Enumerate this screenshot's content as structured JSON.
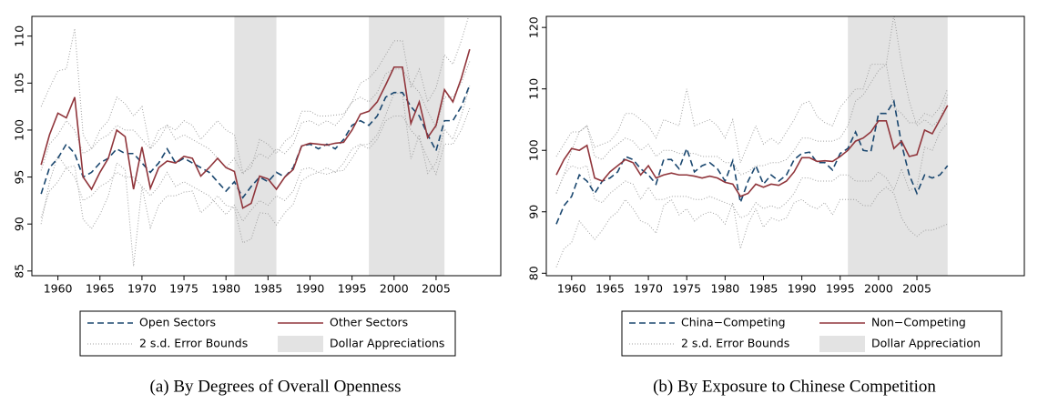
{
  "chart_data": [
    {
      "type": "line",
      "caption": "(a) By Degrees of Overall Openness",
      "x": [
        1958,
        1959,
        1960,
        1961,
        1962,
        1963,
        1964,
        1965,
        1966,
        1967,
        1968,
        1969,
        1970,
        1971,
        1972,
        1973,
        1974,
        1975,
        1976,
        1977,
        1978,
        1979,
        1980,
        1981,
        1982,
        1983,
        1984,
        1985,
        1986,
        1987,
        1988,
        1989,
        1990,
        1991,
        1992,
        1993,
        1994,
        1995,
        1996,
        1997,
        1998,
        1999,
        2000,
        2001,
        2002,
        2003,
        2004,
        2005,
        2006,
        2007,
        2008,
        2009
      ],
      "xlim": [
        1956.9,
        2012.7
      ],
      "xticks": [
        1960,
        1965,
        1970,
        1975,
        1980,
        1985,
        1990,
        1995,
        2000,
        2005
      ],
      "ylim": [
        84.5,
        112.1
      ],
      "yticks": [
        85,
        90,
        95,
        100,
        105,
        110
      ],
      "series": [
        {
          "name": "Open Sectors",
          "color": "#1a476f",
          "dash": "dashed",
          "values": [
            93.2,
            96,
            97,
            98.5,
            97.5,
            95,
            95.5,
            96.5,
            97,
            98,
            97.5,
            97.5,
            96.5,
            95.5,
            96.5,
            98,
            96.5,
            97,
            96.5,
            96,
            95.5,
            94.5,
            93.5,
            94.5,
            92.8,
            94,
            95,
            94.5,
            95.5,
            95,
            96,
            98.3,
            98.5,
            98,
            98.5,
            98,
            99,
            100.5,
            101,
            100.5,
            101.5,
            103.5,
            104,
            104,
            102.5,
            101.5,
            99.5,
            97.8,
            101,
            101,
            102.5,
            104.8
          ]
        },
        {
          "name": "Other Sectors",
          "color": "#90353b",
          "dash": "solid",
          "values": [
            96.3,
            99.5,
            101.8,
            101.3,
            103.5,
            95,
            93.7,
            95.5,
            97,
            100,
            99.3,
            93.7,
            98.2,
            93.8,
            96,
            96.7,
            96.5,
            97.2,
            97,
            95.1,
            96,
            97,
            96,
            95.6,
            91.7,
            92.2,
            95.1,
            94.8,
            93.7,
            95,
            95.8,
            98.3,
            98.6,
            98.5,
            98.4,
            98.6,
            98.7,
            100,
            101.7,
            102,
            103,
            104.8,
            106.7,
            106.7,
            100.7,
            103,
            99.2,
            100.5,
            104.3,
            103,
            105.5,
            108.6
          ]
        }
      ],
      "error_bounds": {
        "name": "2 s.d. Error Bounds",
        "color": "#a0a0a0",
        "lines": [
          {
            "values": [
              95.7,
              98.5,
              99.5,
              101,
              100,
              97.5,
              98,
              99,
              99.5,
              100.5,
              100,
              100,
              99,
              98,
              99,
              100.5,
              99,
              99.5,
              99,
              98.5,
              98,
              97,
              96,
              97,
              95.3,
              96.5,
              97.5,
              97,
              98,
              97.5,
              98.5,
              100.8,
              101,
              100.5,
              101,
              100.5,
              101.5,
              103,
              103.5,
              103,
              104,
              106,
              106.5,
              106.5,
              105,
              104,
              102,
              100.3,
              103.5,
              103.5,
              105,
              107.3
            ]
          },
          {
            "values": [
              90.7,
              93.5,
              94.5,
              96,
              95,
              92.5,
              93,
              94,
              94.5,
              95.5,
              95,
              95,
              94,
              93,
              94,
              95.5,
              94,
              94.5,
              94,
              93.5,
              93,
              92,
              91,
              92,
              90.3,
              91.5,
              92.5,
              92,
              93,
              92.5,
              93.5,
              95.8,
              96,
              95.5,
              96,
              95.5,
              96.5,
              98,
              98.5,
              98,
              99,
              101,
              101.5,
              101.5,
              100,
              99,
              97,
              95.3,
              98.5,
              98.5,
              100,
              102.3
            ]
          },
          {
            "values": [
              102.5,
              104.5,
              106.3,
              106.5,
              110.8,
              99.5,
              98,
              100,
              101,
              103.5,
              102.8,
              101.5,
              102.5,
              98,
              100,
              100.5,
              100,
              101,
              100.5,
              99,
              100,
              101,
              100,
              99.5,
              95.5,
              96,
              99,
              98.5,
              97.5,
              98.8,
              99.5,
              102,
              102,
              101.5,
              101.5,
              101.6,
              101.7,
              103,
              105,
              105.5,
              106.5,
              108,
              109.5,
              109.5,
              104.5,
              106.5,
              103,
              104.5,
              108,
              107,
              109.5,
              112.5
            ]
          },
          {
            "values": [
              90,
              94.5,
              97.3,
              96,
              96.2,
              90.5,
              89.5,
              91,
              93,
              96.5,
              95.8,
              85.5,
              94,
              89.6,
              92,
              93,
              93,
              93.4,
              93.5,
              91.2,
              92,
              93,
              92,
              91.7,
              88,
              88.4,
              91.2,
              91.1,
              89.9,
              91.2,
              92.1,
              94.6,
              95.2,
              95.5,
              95.3,
              95.6,
              95.7,
              97,
              98.4,
              98.5,
              99.5,
              101.6,
              103.9,
              103.9,
              96.9,
              99.5,
              95.4,
              96.5,
              100.1,
              99,
              101.5,
              104.7
            ]
          }
        ]
      },
      "shaded": {
        "name": "Dollar Appreciations",
        "color": "#e3e3e3",
        "ranges": [
          [
            1981,
            1986
          ],
          [
            1997,
            2006
          ]
        ]
      }
    },
    {
      "type": "line",
      "caption": "(b) By Exposure to Chinese Competition",
      "x": [
        1958,
        1959,
        1960,
        1961,
        1962,
        1963,
        1964,
        1965,
        1966,
        1967,
        1968,
        1969,
        1970,
        1971,
        1972,
        1973,
        1974,
        1975,
        1976,
        1977,
        1978,
        1979,
        1980,
        1981,
        1982,
        1983,
        1984,
        1985,
        1986,
        1987,
        1988,
        1989,
        1990,
        1991,
        1992,
        1993,
        1994,
        1995,
        1996,
        1997,
        1998,
        1999,
        2000,
        2001,
        2002,
        2003,
        2004,
        2005,
        2006,
        2007,
        2008,
        2009
      ],
      "xlim": [
        1956.7,
        2019
      ],
      "xticks": [
        1960,
        1965,
        1970,
        1975,
        1980,
        1985,
        1990,
        1995,
        2000,
        2005
      ],
      "ylim": [
        79.6,
        121.8
      ],
      "yticks": [
        80,
        90,
        100,
        110,
        120
      ],
      "series": [
        {
          "name": "China−Competing",
          "color": "#1a476f",
          "dash": "dashed",
          "values": [
            88,
            91,
            92.5,
            96,
            95,
            93,
            95,
            95.5,
            96.5,
            99,
            98.5,
            97,
            96,
            94.5,
            98.5,
            98.5,
            97,
            100.3,
            96.5,
            97.5,
            98,
            97,
            95,
            98.3,
            91.5,
            95,
            97.5,
            94.5,
            96,
            95,
            96,
            98.5,
            99.5,
            99.7,
            98,
            98,
            96.8,
            99.5,
            100.3,
            103,
            100,
            99.8,
            106,
            106,
            108,
            101,
            96,
            93,
            96,
            95.5,
            96,
            97.5
          ]
        },
        {
          "name": "Non−Competing",
          "color": "#90353b",
          "dash": "solid",
          "values": [
            96,
            98.5,
            100.3,
            100,
            100.8,
            95.5,
            95,
            96.5,
            97.5,
            98.5,
            98,
            96,
            97.5,
            95.5,
            96,
            96.3,
            96,
            96,
            95.8,
            95.5,
            95.8,
            95.5,
            94.8,
            94.5,
            92.5,
            93,
            94.5,
            94,
            94.5,
            94.3,
            95,
            96.5,
            98.8,
            98.8,
            98.2,
            98.3,
            98.2,
            99,
            100,
            101.5,
            102,
            103,
            104.8,
            104.8,
            100.3,
            101.5,
            99,
            99.3,
            103.3,
            102.7,
            105,
            107.3
          ]
        }
      ],
      "error_bounds": {
        "name": "2 s.d. Error Bounds",
        "color": "#a0a0a0",
        "lines": [
          {
            "values": [
              93,
              96,
              100,
              103,
              104,
              100.5,
              101,
              101.5,
              103,
              106,
              106,
              105,
              104,
              102,
              105,
              104.5,
              104,
              110,
              104,
              104.5,
              105,
              104,
              102,
              105,
              98,
              101,
              104,
              101,
              102,
              101,
              103,
              105,
              107.5,
              108,
              105.5,
              104.5,
              104,
              107,
              108.5,
              110,
              110,
              114,
              114,
              114,
              122,
              114,
              108,
              104,
              105,
              104,
              105,
              109
            ]
          },
          {
            "values": [
              81,
              84,
              85,
              88.5,
              87,
              85.5,
              87,
              89,
              90,
              92,
              90.5,
              88.5,
              88,
              86.5,
              91,
              92,
              89.5,
              90.5,
              88.5,
              89.5,
              90,
              89.5,
              88,
              91.5,
              84,
              88,
              90.5,
              87.5,
              89,
              88.5,
              89,
              91.5,
              92,
              91,
              90.5,
              91.5,
              89.5,
              92,
              92,
              92,
              91,
              91,
              93,
              94,
              93,
              89,
              87,
              86,
              87,
              87,
              87.5,
              88
            ]
          },
          {
            "values": [
              99,
              101,
              103,
              103,
              104,
              99,
              98.5,
              100,
              101,
              102,
              101.5,
              100,
              101,
              99,
              100,
              100,
              99.5,
              99.5,
              99.5,
              99,
              99,
              99,
              98,
              98,
              96,
              96.5,
              97.5,
              97.5,
              98,
              98,
              98.5,
              100,
              102,
              102,
              101.5,
              101.5,
              101.5,
              102,
              104,
              108,
              109,
              111,
              113,
              114,
              107,
              106,
              104.5,
              104.5,
              106,
              105.5,
              107,
              110
            ]
          },
          {
            "values": [
              93,
              96,
              97.5,
              97,
              97.5,
              92,
              91.5,
              93,
              94,
              95,
              94.5,
              92,
              94,
              92,
              92,
              92.5,
              92.5,
              92.5,
              92,
              92,
              92.5,
              92,
              91.5,
              91,
              89,
              89.5,
              91.5,
              90.5,
              91,
              90.5,
              91.5,
              93,
              95.5,
              95.5,
              95,
              95,
              95,
              96,
              96,
              95,
              95,
              95,
              96.5,
              95.5,
              93.5,
              97,
              93.5,
              94,
              100.5,
              100,
              103,
              104.5
            ]
          }
        ]
      },
      "shaded": {
        "name": "Dollar Appreciation",
        "color": "#e3e3e3",
        "ranges": [
          [
            1996,
            2009
          ]
        ]
      }
    }
  ]
}
